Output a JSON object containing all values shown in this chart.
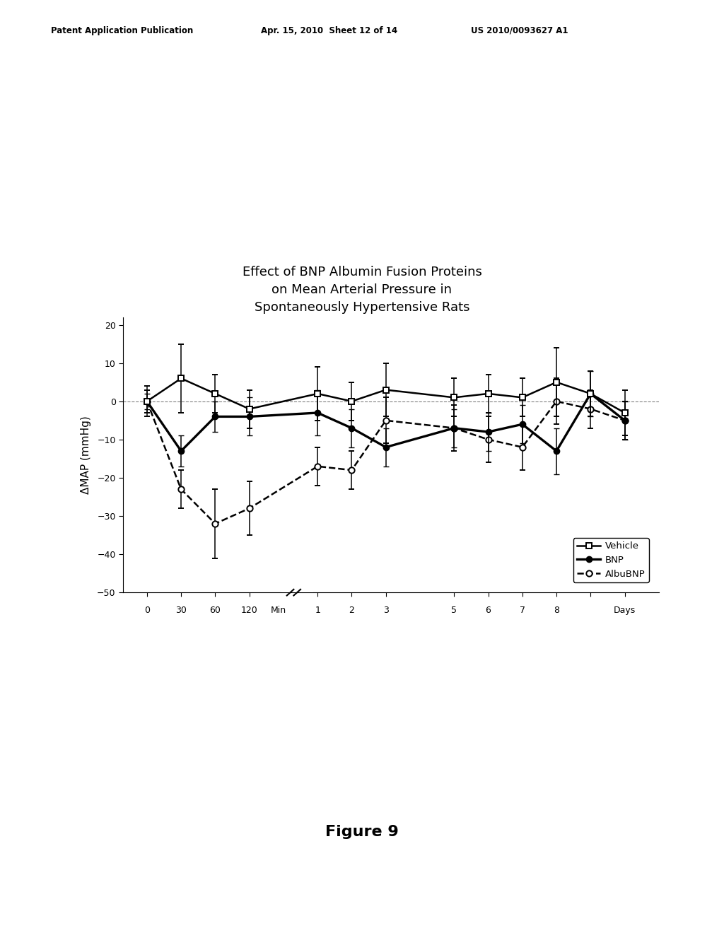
{
  "title_line1": "Effect of BNP Albumin Fusion Proteins",
  "title_line2": "on Mean Arterial Pressure in",
  "title_line3": "Spontaneously Hypertensive Rats",
  "ylabel": "ΔMAP (mmHg)",
  "figure_label": "Figure 9",
  "header_left": "Patent Application Publication",
  "header_mid": "Apr. 15, 2010  Sheet 12 of 14",
  "header_right": "US 2010/0093627 A1",
  "ylim": [
    -50,
    22
  ],
  "yticks": [
    -50,
    -40,
    -30,
    -20,
    -10,
    0,
    10,
    20
  ],
  "vehicle_y": [
    0,
    6,
    2,
    -2,
    2,
    0,
    3,
    1,
    2,
    1,
    5,
    2,
    -3
  ],
  "vehicle_yerr": [
    4,
    9,
    5,
    5,
    7,
    5,
    7,
    5,
    5,
    5,
    9,
    6,
    6
  ],
  "bnp_y": [
    0,
    -13,
    -4,
    -4,
    -3,
    -7,
    -12,
    -7,
    -8,
    -6,
    -13,
    2,
    -5
  ],
  "bnp_yerr": [
    2,
    4,
    4,
    5,
    6,
    5,
    5,
    5,
    5,
    5,
    6,
    6,
    5
  ],
  "albubnp_y": [
    0,
    -23,
    -32,
    -28,
    -17,
    -18,
    -5,
    -7,
    -10,
    -12,
    0,
    -2,
    -5
  ],
  "albubnp_yerr": [
    3,
    5,
    9,
    7,
    5,
    5,
    6,
    6,
    6,
    6,
    6,
    5,
    5
  ],
  "line_color": "#1a1a1a",
  "bg_color": "#ffffff"
}
